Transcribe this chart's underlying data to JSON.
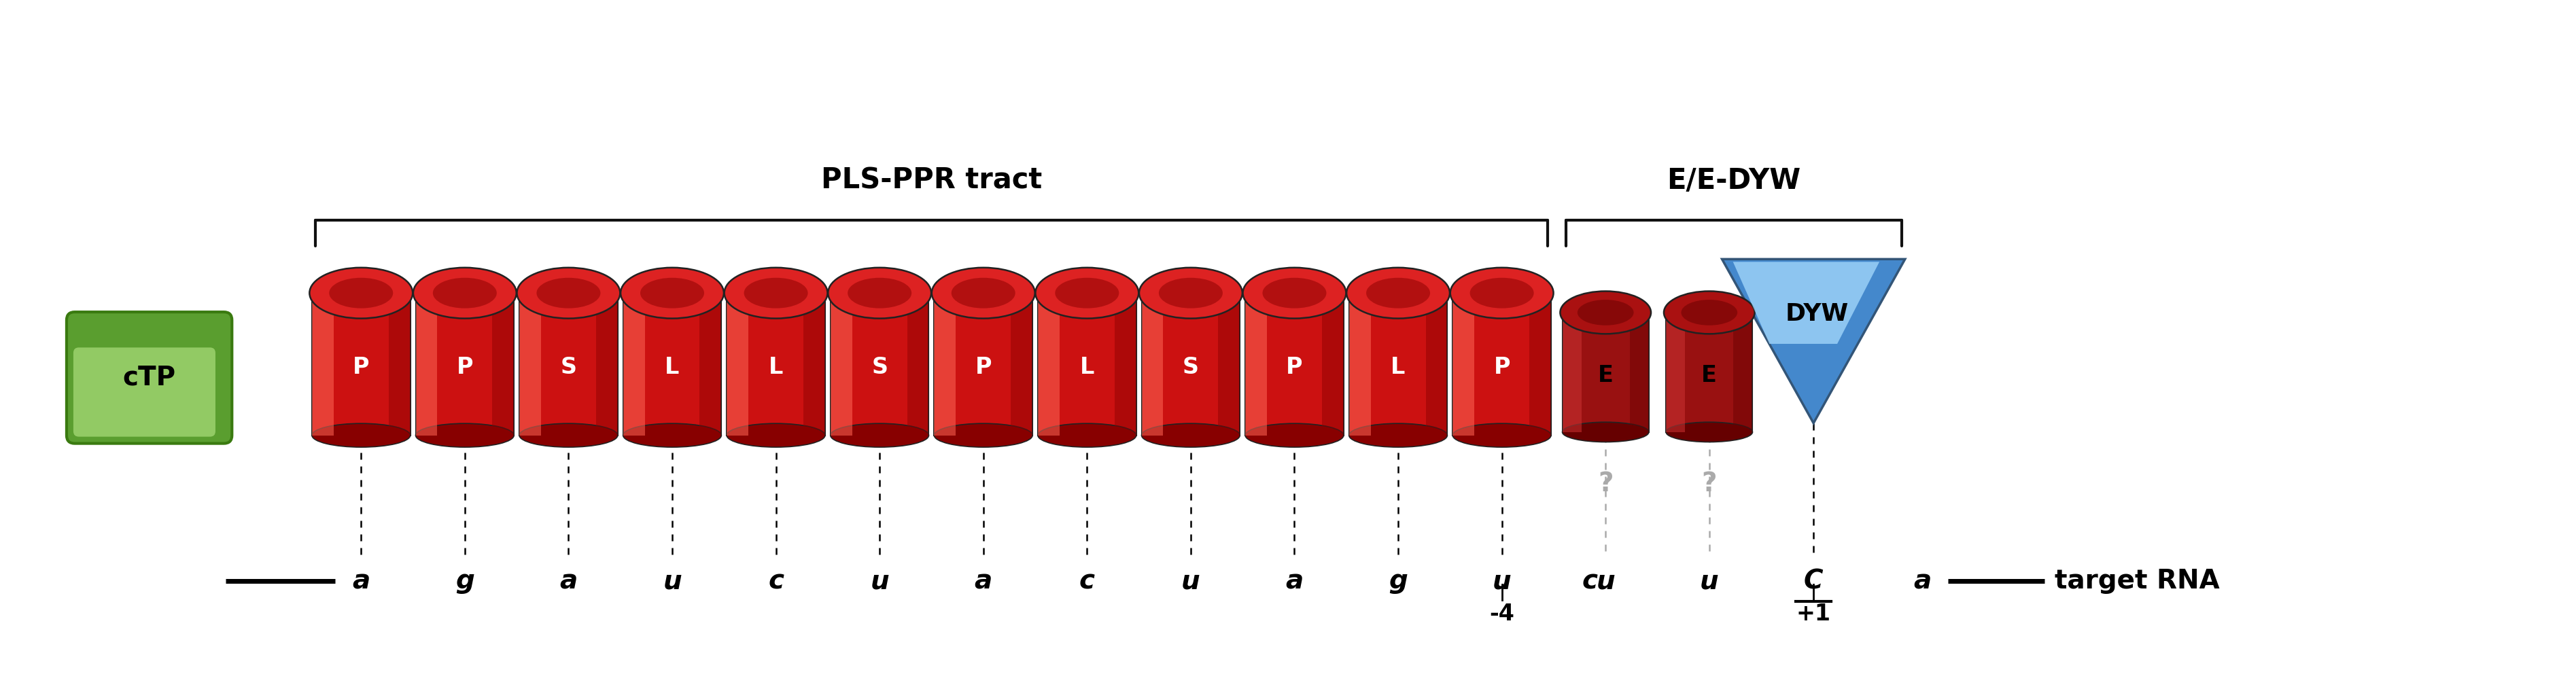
{
  "pls_label": "PLS-PPR tract",
  "ee_label": "E/E-DYW",
  "rna_label": "target RNA",
  "ppr_modules": [
    "P",
    "P",
    "S",
    "L",
    "L",
    "S",
    "P",
    "L",
    "S",
    "P",
    "L",
    "P",
    "E",
    "E"
  ],
  "rna_bases": [
    "a",
    "g",
    "a",
    "u",
    "c",
    "u",
    "a",
    "c",
    "u",
    "a",
    "g",
    "u",
    "c",
    "u",
    "u",
    "C",
    "a"
  ],
  "rna_base_underline": [
    false,
    false,
    false,
    false,
    false,
    false,
    false,
    false,
    false,
    false,
    false,
    false,
    false,
    false,
    false,
    true,
    false
  ],
  "minus4_idx": 11,
  "plus1_idx": 15,
  "question_mark_idxs": [
    13,
    14
  ],
  "bg_color": "#ffffff",
  "ctp_color_top": "#aade7c",
  "ctp_color_bot": "#5a9e2f",
  "ctp_border": "#3a7a10",
  "cylinder_red": "#cc1111",
  "cylinder_highlight": "#ff6655",
  "cylinder_dark": "#880000",
  "cylinder_cap_red": "#dd2222",
  "e_cylinder_red": "#991111",
  "e_cylinder_highlight": "#cc3333",
  "e_cylinder_dark": "#660000",
  "e_cylinder_cap": "#aa1111",
  "dyw_blue_top": "#aaddff",
  "dyw_blue_bot": "#4488cc",
  "bracket_color": "#111111",
  "question_color": "#aaaaaa",
  "rna_dot_color": "#000000",
  "rna_dot_color_q": "#aaaaaa"
}
